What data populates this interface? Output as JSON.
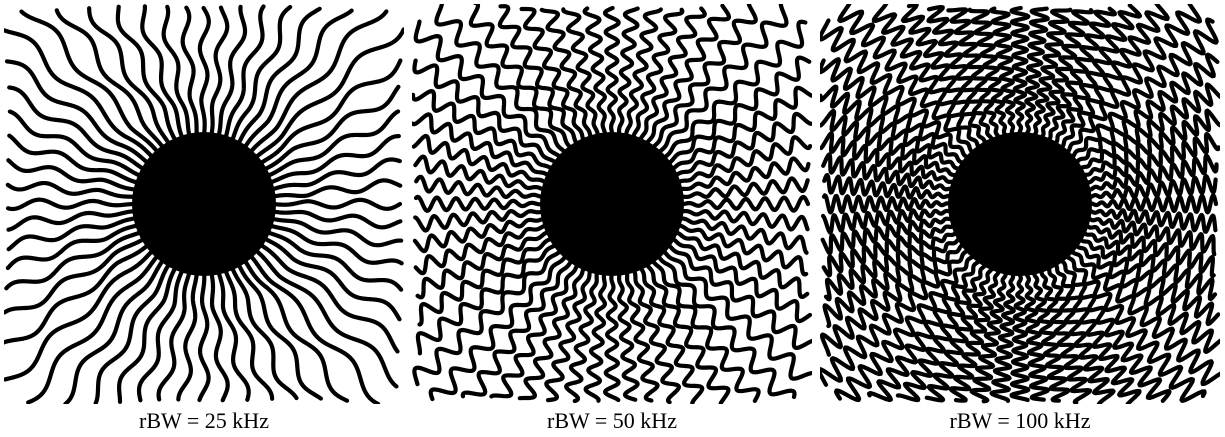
{
  "figure": {
    "panels": [
      {
        "caption": "rBW = 25 kHz",
        "wave_cycles": 2.5,
        "wave_amplitude": 0.5
      },
      {
        "caption": "rBW = 50 kHz",
        "wave_cycles": 7,
        "wave_amplitude": 0.7
      },
      {
        "caption": "rBW = 100 kHz",
        "wave_cycles": 12,
        "wave_amplitude": 0.85
      }
    ],
    "colors": {
      "stroke": "#000000",
      "background": "#ffffff"
    }
  }
}
